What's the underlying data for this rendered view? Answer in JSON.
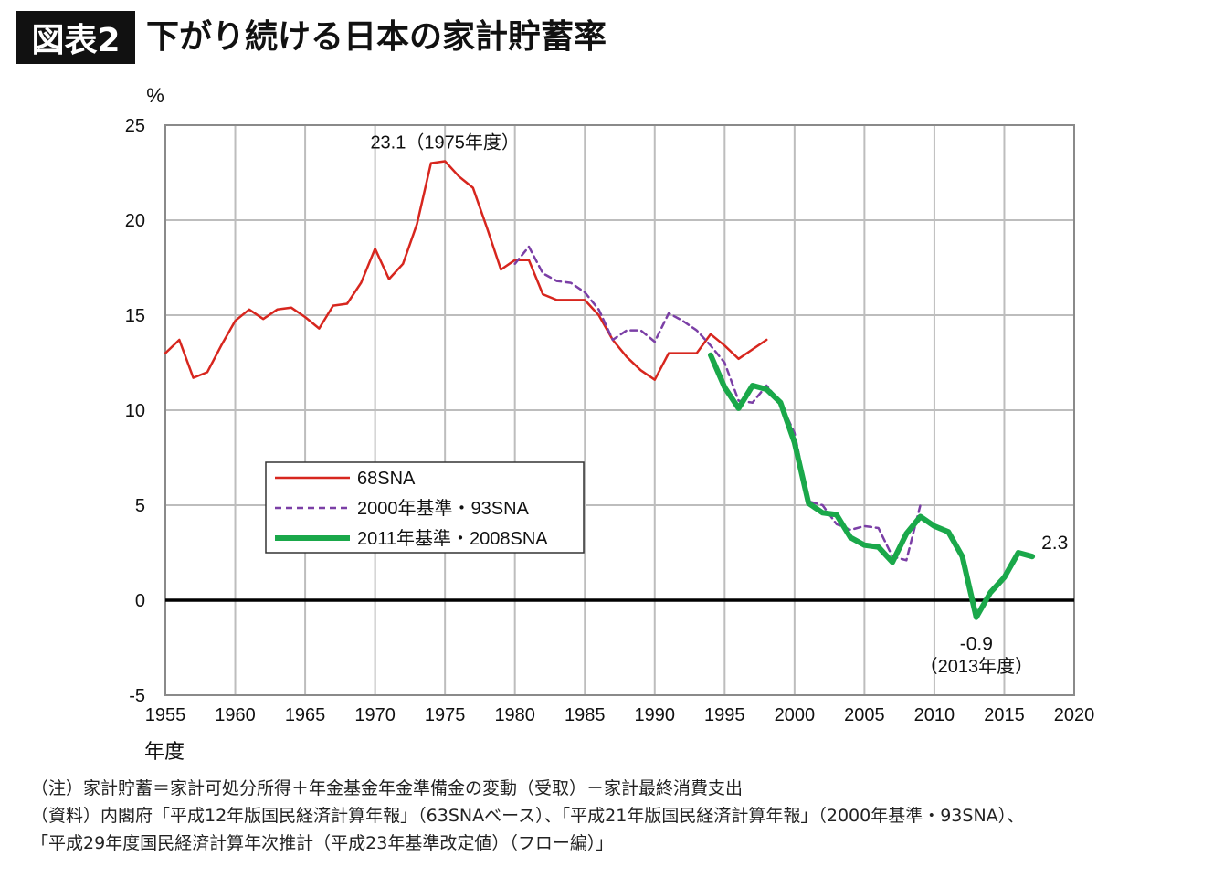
{
  "header": {
    "badge": "図表2",
    "title": "下がり続ける日本の家計貯蓄率"
  },
  "chart_data": {
    "type": "line",
    "ylabel": "%",
    "xlabel": "年度",
    "xlim": [
      1955,
      2020
    ],
    "ylim": [
      -5,
      25
    ],
    "x_ticks": [
      1955,
      1960,
      1965,
      1970,
      1975,
      1980,
      1985,
      1990,
      1995,
      2000,
      2005,
      2010,
      2015,
      2020
    ],
    "y_ticks": [
      -5,
      0,
      5,
      10,
      15,
      20,
      25
    ],
    "grid": true,
    "legend_position": "lower-left",
    "series": [
      {
        "name": "68SNA",
        "color": "#d7261e",
        "style": "solid",
        "x": [
          1955,
          1956,
          1957,
          1958,
          1959,
          1960,
          1961,
          1962,
          1963,
          1964,
          1965,
          1966,
          1967,
          1968,
          1969,
          1970,
          1971,
          1972,
          1973,
          1974,
          1975,
          1976,
          1977,
          1978,
          1979,
          1980,
          1981,
          1982,
          1983,
          1984,
          1985,
          1986,
          1987,
          1988,
          1989,
          1990,
          1991,
          1992,
          1993,
          1994,
          1995,
          1996,
          1997,
          1998
        ],
        "values": [
          13.0,
          13.7,
          11.7,
          12.0,
          13.4,
          14.7,
          15.3,
          14.8,
          15.3,
          15.4,
          14.9,
          14.3,
          15.5,
          15.6,
          16.7,
          18.5,
          16.9,
          17.7,
          19.8,
          23.0,
          23.1,
          22.3,
          21.7,
          19.6,
          17.4,
          17.9,
          17.9,
          16.1,
          15.8,
          15.8,
          15.8,
          15.0,
          13.7,
          12.8,
          12.1,
          11.6,
          13.0,
          13.0,
          13.0,
          14.0,
          13.4,
          12.7,
          13.2,
          13.7
        ]
      },
      {
        "name": "2000年基準・93SNA",
        "color": "#7b3fa6",
        "style": "dashed",
        "x": [
          1980,
          1981,
          1982,
          1983,
          1984,
          1985,
          1986,
          1987,
          1988,
          1989,
          1990,
          1991,
          1992,
          1993,
          1994,
          1995,
          1996,
          1997,
          1998,
          1999,
          2000,
          2001,
          2002,
          2003,
          2004,
          2005,
          2006,
          2007,
          2008,
          2009
        ],
        "values": [
          17.7,
          18.6,
          17.2,
          16.8,
          16.7,
          16.2,
          15.3,
          13.7,
          14.2,
          14.2,
          13.6,
          15.1,
          14.7,
          14.2,
          13.4,
          12.5,
          10.5,
          10.4,
          11.3,
          10.4,
          8.8,
          5.2,
          5.0,
          4.0,
          3.7,
          3.9,
          3.8,
          2.3,
          2.1,
          5.0
        ]
      },
      {
        "name": "2011年基準・2008SNA",
        "color": "#1aa84a",
        "style": "solid-thick",
        "x": [
          1994,
          1995,
          1996,
          1997,
          1998,
          1999,
          2000,
          2001,
          2002,
          2003,
          2004,
          2005,
          2006,
          2007,
          2008,
          2009,
          2010,
          2011,
          2012,
          2013,
          2014,
          2015,
          2016,
          2017
        ],
        "values": [
          12.9,
          11.2,
          10.1,
          11.3,
          11.1,
          10.4,
          8.3,
          5.1,
          4.6,
          4.5,
          3.3,
          2.9,
          2.8,
          2.0,
          3.5,
          4.4,
          3.9,
          3.6,
          2.3,
          -0.9,
          0.4,
          1.2,
          2.5,
          2.3
        ]
      }
    ],
    "annotations": [
      {
        "text": "23.1（1975年度）",
        "x": 1975,
        "y": 23.1
      },
      {
        "text": "2.3",
        "x": 2017,
        "y": 2.3
      },
      {
        "text": "-0.9",
        "x": 2013,
        "y": -0.9
      },
      {
        "text": "（2013年度）",
        "x": 2013,
        "y": -3.8
      }
    ]
  },
  "notes": [
    "（注）家計貯蓄＝家計可処分所得＋年金基金年金準備金の変動（受取）－家計最終消費支出",
    "（資料）内閣府「平成12年版国民経済計算年報」（63SNAベース）、「平成21年版国民経済計算年報」（2000年基準・93SNA）、",
    "「平成29年度国民経済計算年次推計（平成23年基準改定値）（フロー編）」"
  ]
}
